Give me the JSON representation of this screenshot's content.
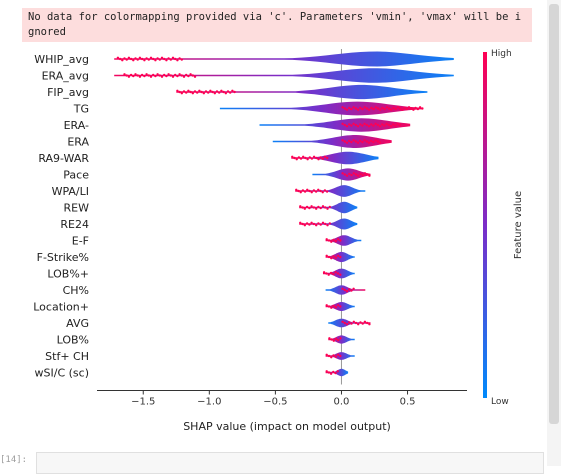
{
  "warning": {
    "text": "No data for colormapping provided via 'c'. Parameters 'vmin', 'vmax' will be ignored"
  },
  "next_cell": {
    "prompt": "[14]:"
  },
  "colors": {
    "low": "#008afb",
    "mid": "#7b2dc8",
    "high": "#ff0052",
    "zero_line": "#999999"
  },
  "chart_data": {
    "type": "violin",
    "xlabel": "SHAP value (impact on model output)",
    "xlim": [
      -1.85,
      0.95
    ],
    "xticks": [
      -1.5,
      -1.0,
      -0.5,
      0.0,
      0.5
    ],
    "xtick_labels": [
      "−1.5",
      "−1.0",
      "−0.5",
      "0.0",
      "0.5"
    ],
    "colorbar": {
      "label": "Feature value",
      "high": "High",
      "low": "Low"
    },
    "features": [
      {
        "name": "WHIP_avg",
        "min": -1.72,
        "max": 0.85,
        "high_side": "left",
        "high_x": [
          -1.7,
          -1.2
        ],
        "peak_x": 0.25,
        "spread": 0.9
      },
      {
        "name": "ERA_avg",
        "min": -1.72,
        "max": 0.85,
        "high_side": "left",
        "high_x": [
          -1.65,
          -1.1
        ],
        "peak_x": 0.25,
        "spread": 0.85
      },
      {
        "name": "FIP_avg",
        "min": -1.25,
        "max": 0.65,
        "high_side": "left",
        "high_x": [
          -1.25,
          -0.8
        ],
        "peak_x": 0.15,
        "spread": 0.7
      },
      {
        "name": "TG",
        "min": -0.92,
        "max": 0.62,
        "high_side": "right",
        "high_x": [
          0.0,
          0.62
        ],
        "peak_x": 0.12,
        "spread": 0.7
      },
      {
        "name": "ERA-",
        "min": -0.62,
        "max": 0.52,
        "high_side": "right",
        "high_x": [
          0.0,
          0.45
        ],
        "peak_x": 0.15,
        "spread": 0.6
      },
      {
        "name": "ERA",
        "min": -0.52,
        "max": 0.38,
        "high_side": "right",
        "high_x": [
          0.0,
          0.3
        ],
        "peak_x": 0.1,
        "spread": 0.45
      },
      {
        "name": "RA9-WAR",
        "min": -0.38,
        "max": 0.28,
        "high_side": "left",
        "high_x": [
          -0.38,
          -0.1
        ],
        "peak_x": 0.05,
        "spread": 0.35
      },
      {
        "name": "Pace",
        "min": -0.22,
        "max": 0.22,
        "high_side": "right",
        "high_x": [
          0.0,
          0.22
        ],
        "peak_x": 0.05,
        "spread": 0.22
      },
      {
        "name": "WPA/LI",
        "min": -0.35,
        "max": 0.18,
        "high_side": "left",
        "high_x": [
          -0.35,
          -0.1
        ],
        "peak_x": 0.02,
        "spread": 0.15
      },
      {
        "name": "REW",
        "min": -0.32,
        "max": 0.12,
        "high_side": "left",
        "high_x": [
          -0.32,
          -0.08
        ],
        "peak_x": 0.02,
        "spread": 0.12
      },
      {
        "name": "RE24",
        "min": -0.32,
        "max": 0.12,
        "high_side": "left",
        "high_x": [
          -0.32,
          -0.08
        ],
        "peak_x": 0.02,
        "spread": 0.12
      },
      {
        "name": "E-F",
        "min": -0.12,
        "max": 0.15,
        "high_side": "left",
        "high_x": [
          -0.12,
          0.0
        ],
        "peak_x": 0.02,
        "spread": 0.12
      },
      {
        "name": "F-Strike%",
        "min": -0.12,
        "max": 0.1,
        "high_side": "left",
        "high_x": [
          -0.12,
          0.0
        ],
        "peak_x": 0.0,
        "spread": 0.1
      },
      {
        "name": "LOB%+",
        "min": -0.14,
        "max": 0.1,
        "high_side": "left",
        "high_x": [
          -0.14,
          0.0
        ],
        "peak_x": 0.0,
        "spread": 0.1
      },
      {
        "name": "CH%",
        "min": -0.12,
        "max": 0.18,
        "high_side": "right",
        "high_x": [
          0.0,
          0.1
        ],
        "peak_x": 0.0,
        "spread": 0.1
      },
      {
        "name": "Location+",
        "min": -0.12,
        "max": 0.1,
        "high_side": "left",
        "high_x": [
          -0.12,
          0.0
        ],
        "peak_x": 0.0,
        "spread": 0.1
      },
      {
        "name": "AVG",
        "min": -0.1,
        "max": 0.22,
        "high_side": "right",
        "high_x": [
          0.0,
          0.22
        ],
        "peak_x": 0.0,
        "spread": 0.1
      },
      {
        "name": "LOB%",
        "min": -0.1,
        "max": 0.1,
        "high_side": "left",
        "high_x": [
          -0.1,
          0.0
        ],
        "peak_x": 0.0,
        "spread": 0.08
      },
      {
        "name": "Stf+ CH",
        "min": -0.12,
        "max": 0.1,
        "high_side": "left",
        "high_x": [
          -0.12,
          0.0
        ],
        "peak_x": 0.0,
        "spread": 0.08
      },
      {
        "name": "wSI/C (sc)",
        "min": -0.12,
        "max": 0.05,
        "high_side": "left",
        "high_x": [
          -0.12,
          -0.02
        ],
        "peak_x": 0.0,
        "spread": 0.05
      }
    ]
  }
}
